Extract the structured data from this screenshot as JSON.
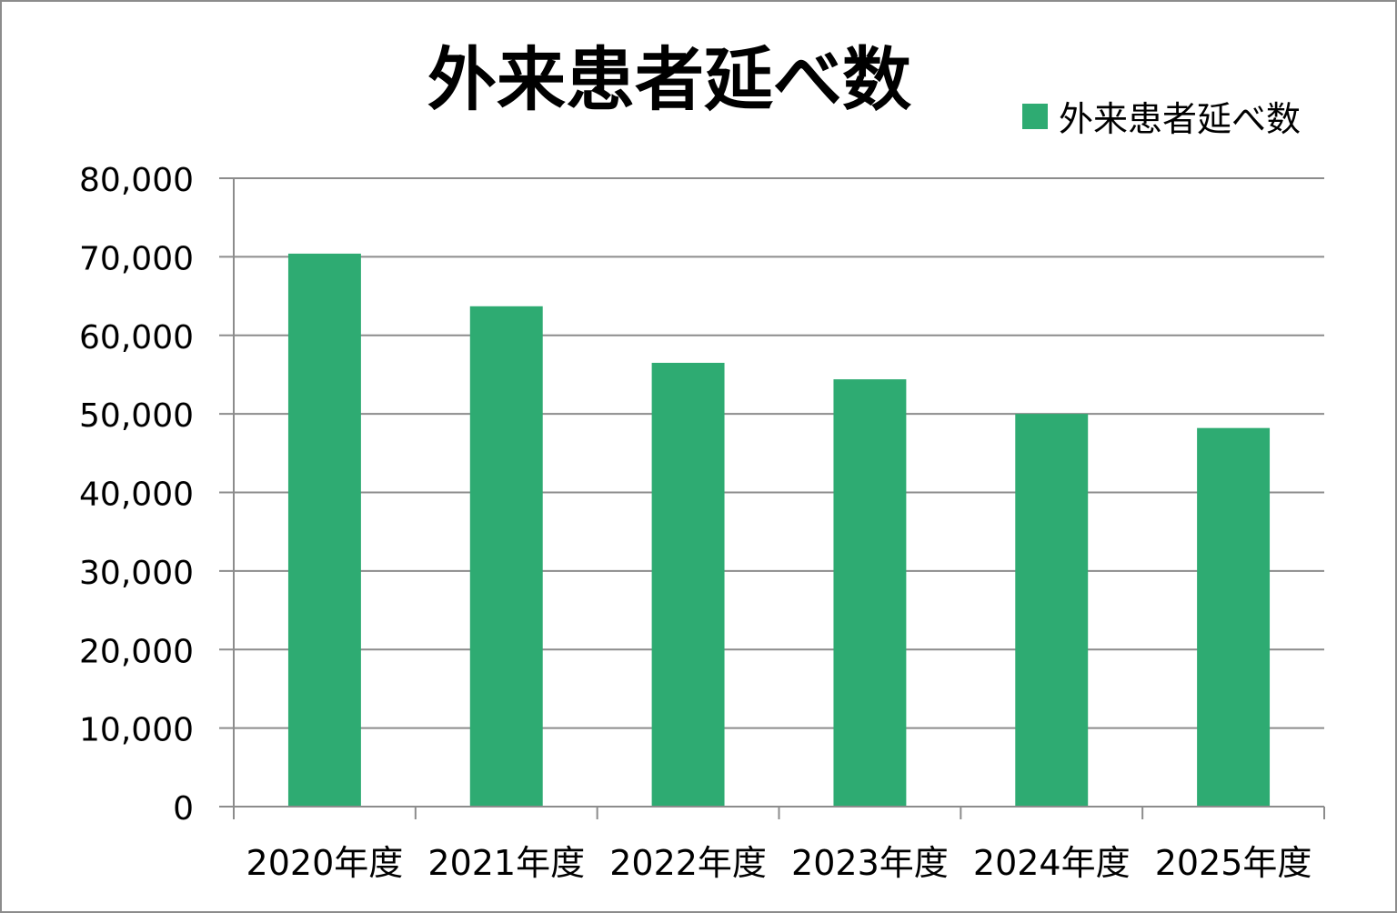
{
  "chart_data": {
    "type": "bar",
    "title": "外来患者延べ数",
    "categories": [
      "2020年度",
      "2021年度",
      "2022年度",
      "2023年度",
      "2024年度",
      "2025年度"
    ],
    "series": [
      {
        "name": "外来患者延べ数",
        "values": [
          70400,
          63700,
          56500,
          54400,
          50000,
          48200
        ]
      }
    ],
    "ylim": [
      0,
      80000
    ],
    "yticks": [
      0,
      10000,
      20000,
      30000,
      40000,
      50000,
      60000,
      70000,
      80000
    ],
    "ytick_labels": [
      "0",
      "10,000",
      "20,000",
      "30,000",
      "40,000",
      "50,000",
      "60,000",
      "70,000",
      "80,000"
    ],
    "grid": true,
    "legend_position": "top-right",
    "bar_color": "#2eab72"
  }
}
